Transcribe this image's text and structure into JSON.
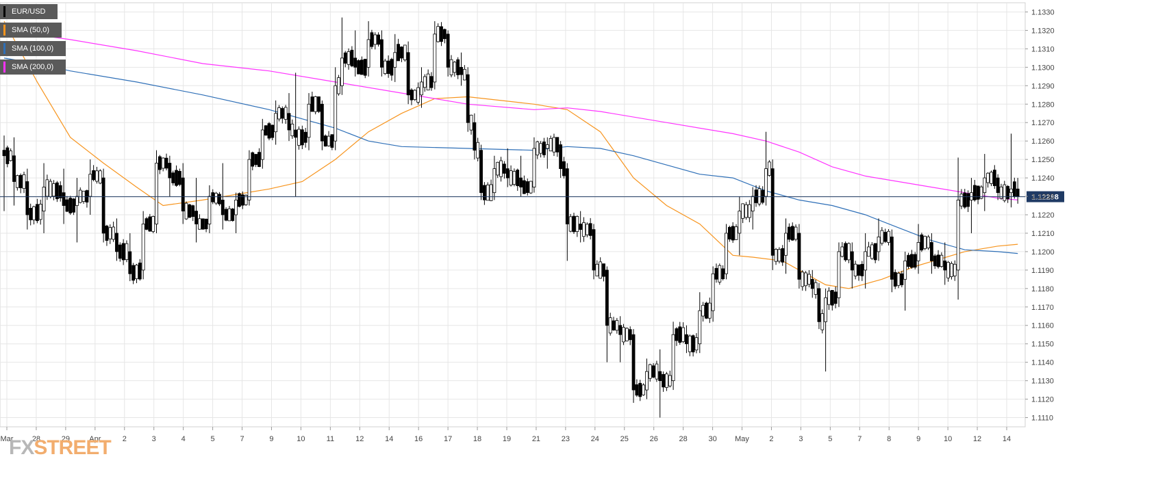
{
  "legend": [
    {
      "label": "EUR/USD",
      "color": "#000000"
    },
    {
      "label": "SMA (50,0)",
      "color": "#f7941d"
    },
    {
      "label": "SMA (100,0)",
      "color": "#2e6fb7"
    },
    {
      "label": "SMA (200,0)",
      "color": "#ff33ff"
    }
  ],
  "price_tag": "1.12298",
  "logo": {
    "fx": "FX",
    "street": "STREET"
  },
  "colors": {
    "bull": "#ffffff",
    "bear": "#000000",
    "grid": "#e6e6e6",
    "price_line": "#1f3a64",
    "tag_bg": "#1f3a64"
  },
  "chart_data": {
    "type": "candlestick",
    "symbol": "EUR/USD",
    "ylim": [
      1.1105,
      1.1335
    ],
    "y_ticks": [
      "1.1110",
      "1.1120",
      "1.1130",
      "1.1140",
      "1.1150",
      "1.1160",
      "1.1170",
      "1.1180",
      "1.1190",
      "1.1200",
      "1.1210",
      "1.1220",
      "1.1230",
      "1.1240",
      "1.1250",
      "1.1260",
      "1.1270",
      "1.1280",
      "1.1290",
      "1.1300",
      "1.1310",
      "1.1320",
      "1.1330"
    ],
    "x_ticks": [
      "Mar",
      "28",
      "29",
      "Apr",
      "2",
      "3",
      "4",
      "5",
      "7",
      "9",
      "10",
      "11",
      "12",
      "14",
      "16",
      "17",
      "18",
      "19",
      "21",
      "23",
      "24",
      "25",
      "26",
      "28",
      "30",
      "May",
      "2",
      "3",
      "5",
      "7",
      "8",
      "9",
      "10",
      "12",
      "14"
    ],
    "current_price": 1.12298,
    "ohlc_anchors": [
      [
        0,
        1.1255,
        1.1263,
        1.1222,
        1.1252
      ],
      [
        3,
        1.1252,
        1.1262,
        1.1225,
        1.1238
      ],
      [
        7,
        1.1238,
        1.1245,
        1.1212,
        1.122
      ],
      [
        12,
        1.1222,
        1.1248,
        1.121,
        1.1235
      ],
      [
        18,
        1.1232,
        1.1245,
        1.1215,
        1.1225
      ],
      [
        22,
        1.1225,
        1.124,
        1.1205,
        1.123
      ],
      [
        26,
        1.123,
        1.125,
        1.122,
        1.1242
      ],
      [
        30,
        1.124,
        1.1245,
        1.1205,
        1.121
      ],
      [
        34,
        1.121,
        1.1218,
        1.1195,
        1.12
      ],
      [
        38,
        1.12,
        1.121,
        1.1184,
        1.1188
      ],
      [
        42,
        1.119,
        1.1222,
        1.1185,
        1.1215
      ],
      [
        46,
        1.1215,
        1.1255,
        1.121,
        1.1248
      ],
      [
        50,
        1.1248,
        1.1252,
        1.123,
        1.124
      ],
      [
        54,
        1.124,
        1.1248,
        1.1215,
        1.1222
      ],
      [
        58,
        1.1222,
        1.124,
        1.1205,
        1.1215
      ],
      [
        62,
        1.1215,
        1.1236,
        1.121,
        1.123
      ],
      [
        66,
        1.1228,
        1.1248,
        1.1212,
        1.122
      ],
      [
        70,
        1.122,
        1.1232,
        1.121,
        1.1228
      ],
      [
        74,
        1.1228,
        1.1255,
        1.1225,
        1.125
      ],
      [
        78,
        1.125,
        1.1272,
        1.1245,
        1.1266
      ],
      [
        82,
        1.1265,
        1.1282,
        1.1258,
        1.1275
      ],
      [
        86,
        1.1275,
        1.1286,
        1.126,
        1.1266
      ],
      [
        88,
        1.1266,
        1.1297,
        1.123,
        1.1262
      ],
      [
        92,
        1.1262,
        1.1286,
        1.1255,
        1.128
      ],
      [
        96,
        1.128,
        1.1282,
        1.1255,
        1.126
      ],
      [
        100,
        1.126,
        1.13,
        1.1255,
        1.129
      ],
      [
        102,
        1.129,
        1.1327,
        1.1285,
        1.1305
      ],
      [
        106,
        1.1305,
        1.132,
        1.1295,
        1.13
      ],
      [
        110,
        1.13,
        1.1325,
        1.1295,
        1.1315
      ],
      [
        114,
        1.1315,
        1.132,
        1.1295,
        1.13
      ],
      [
        118,
        1.13,
        1.1318,
        1.1292,
        1.1308
      ],
      [
        122,
        1.1308,
        1.1314,
        1.128,
        1.1285
      ],
      [
        126,
        1.1285,
        1.13,
        1.1278,
        1.1292
      ],
      [
        130,
        1.1292,
        1.1325,
        1.1288,
        1.1318
      ],
      [
        134,
        1.1318,
        1.132,
        1.1295,
        1.13
      ],
      [
        138,
        1.13,
        1.1308,
        1.129,
        1.1296
      ],
      [
        140,
        1.1296,
        1.13,
        1.1265,
        1.127
      ],
      [
        142,
        1.127,
        1.1275,
        1.125,
        1.1255
      ],
      [
        144,
        1.1255,
        1.1258,
        1.1228,
        1.1232
      ],
      [
        148,
        1.1232,
        1.1252,
        1.1228,
        1.1245
      ],
      [
        152,
        1.1245,
        1.1256,
        1.1235,
        1.124
      ],
      [
        156,
        1.124,
        1.1252,
        1.123,
        1.1235
      ],
      [
        160,
        1.1235,
        1.1262,
        1.1232,
        1.1256
      ],
      [
        164,
        1.1256,
        1.1262,
        1.1245,
        1.1258
      ],
      [
        168,
        1.1258,
        1.126,
        1.124,
        1.1245
      ],
      [
        170,
        1.1245,
        1.1248,
        1.1195,
        1.1215
      ],
      [
        174,
        1.1215,
        1.1222,
        1.1205,
        1.1212
      ],
      [
        178,
        1.1212,
        1.1215,
        1.1185,
        1.119
      ],
      [
        182,
        1.119,
        1.1192,
        1.114,
        1.116
      ],
      [
        186,
        1.116,
        1.1165,
        1.114,
        1.1155
      ],
      [
        190,
        1.1155,
        1.1158,
        1.1118,
        1.1125
      ],
      [
        194,
        1.1125,
        1.1142,
        1.112,
        1.1135
      ],
      [
        198,
        1.1135,
        1.1147,
        1.111,
        1.113
      ],
      [
        202,
        1.113,
        1.1162,
        1.1125,
        1.1155
      ],
      [
        206,
        1.1155,
        1.116,
        1.1145,
        1.115
      ],
      [
        210,
        1.115,
        1.1178,
        1.1145,
        1.1168
      ],
      [
        214,
        1.1168,
        1.1192,
        1.1162,
        1.1188
      ],
      [
        218,
        1.1188,
        1.1215,
        1.1185,
        1.121
      ],
      [
        222,
        1.121,
        1.123,
        1.1198,
        1.1222
      ],
      [
        226,
        1.1222,
        1.1235,
        1.1212,
        1.123
      ],
      [
        230,
        1.123,
        1.1265,
        1.1225,
        1.1245
      ],
      [
        232,
        1.1245,
        1.125,
        1.119,
        1.1198
      ],
      [
        236,
        1.1198,
        1.1218,
        1.1188,
        1.121
      ],
      [
        240,
        1.121,
        1.1215,
        1.118,
        1.1185
      ],
      [
        244,
        1.1185,
        1.119,
        1.1175,
        1.118
      ],
      [
        246,
        1.118,
        1.1183,
        1.1158,
        1.1162
      ],
      [
        248,
        1.1162,
        1.118,
        1.1135,
        1.1175
      ],
      [
        252,
        1.1175,
        1.1205,
        1.117,
        1.12
      ],
      [
        256,
        1.12,
        1.1205,
        1.118,
        1.119
      ],
      [
        260,
        1.119,
        1.121,
        1.118,
        1.12
      ],
      [
        264,
        1.12,
        1.1218,
        1.1195,
        1.1208
      ],
      [
        268,
        1.1208,
        1.1212,
        1.1178,
        1.1185
      ],
      [
        272,
        1.1185,
        1.12,
        1.1168,
        1.1195
      ],
      [
        276,
        1.1195,
        1.1215,
        1.1188,
        1.1205
      ],
      [
        280,
        1.1205,
        1.121,
        1.1188,
        1.1195
      ],
      [
        284,
        1.1195,
        1.1205,
        1.1182,
        1.119
      ],
      [
        288,
        1.119,
        1.1251,
        1.1174,
        1.1228
      ],
      [
        292,
        1.1228,
        1.124,
        1.121,
        1.1232
      ],
      [
        296,
        1.1232,
        1.1253,
        1.1222,
        1.124
      ],
      [
        300,
        1.124,
        1.1242,
        1.1228,
        1.1232
      ],
      [
        304,
        1.1232,
        1.1264,
        1.1224,
        1.1234
      ],
      [
        306,
        1.1234,
        1.124,
        1.1226,
        1.123
      ]
    ],
    "sma_50": [
      [
        0,
        1.1325
      ],
      [
        10,
        1.1292
      ],
      [
        20,
        1.1262
      ],
      [
        30,
        1.1248
      ],
      [
        40,
        1.1235
      ],
      [
        48,
        1.1225
      ],
      [
        60,
        1.1228
      ],
      [
        80,
        1.1234
      ],
      [
        90,
        1.1238
      ],
      [
        100,
        1.125
      ],
      [
        110,
        1.1265
      ],
      [
        120,
        1.1275
      ],
      [
        130,
        1.1283
      ],
      [
        140,
        1.1284
      ],
      [
        150,
        1.1282
      ],
      [
        160,
        1.128
      ],
      [
        170,
        1.1277
      ],
      [
        180,
        1.1265
      ],
      [
        190,
        1.124
      ],
      [
        200,
        1.1225
      ],
      [
        210,
        1.1215
      ],
      [
        220,
        1.1198
      ],
      [
        226,
        1.1197
      ],
      [
        235,
        1.1195
      ],
      [
        248,
        1.1182
      ],
      [
        255,
        1.118
      ],
      [
        265,
        1.1185
      ],
      [
        275,
        1.1192
      ],
      [
        290,
        1.12
      ],
      [
        300,
        1.1203
      ],
      [
        306,
        1.1204
      ]
    ],
    "sma_100": [
      [
        0,
        1.1305
      ],
      [
        10,
        1.1302
      ],
      [
        20,
        1.1298
      ],
      [
        40,
        1.1292
      ],
      [
        60,
        1.1285
      ],
      [
        80,
        1.1277
      ],
      [
        100,
        1.1267
      ],
      [
        110,
        1.126
      ],
      [
        120,
        1.1257
      ],
      [
        140,
        1.1256
      ],
      [
        160,
        1.1255
      ],
      [
        170,
        1.1257
      ],
      [
        180,
        1.1256
      ],
      [
        190,
        1.1252
      ],
      [
        200,
        1.1247
      ],
      [
        210,
        1.1242
      ],
      [
        220,
        1.124
      ],
      [
        230,
        1.1233
      ],
      [
        240,
        1.1228
      ],
      [
        250,
        1.1225
      ],
      [
        260,
        1.122
      ],
      [
        270,
        1.1213
      ],
      [
        280,
        1.1206
      ],
      [
        290,
        1.1201
      ],
      [
        300,
        1.12
      ],
      [
        306,
        1.1199
      ]
    ],
    "sma_200": [
      [
        0,
        1.132
      ],
      [
        20,
        1.1315
      ],
      [
        40,
        1.1309
      ],
      [
        60,
        1.1302
      ],
      [
        80,
        1.1298
      ],
      [
        100,
        1.1292
      ],
      [
        120,
        1.1286
      ],
      [
        140,
        1.128
      ],
      [
        160,
        1.1277
      ],
      [
        170,
        1.1278
      ],
      [
        180,
        1.1276
      ],
      [
        200,
        1.127
      ],
      [
        220,
        1.1264
      ],
      [
        230,
        1.126
      ],
      [
        240,
        1.1254
      ],
      [
        250,
        1.1246
      ],
      [
        260,
        1.1241
      ],
      [
        270,
        1.1238
      ],
      [
        280,
        1.1235
      ],
      [
        290,
        1.1232
      ],
      [
        300,
        1.1229
      ],
      [
        306,
        1.1228
      ]
    ]
  }
}
